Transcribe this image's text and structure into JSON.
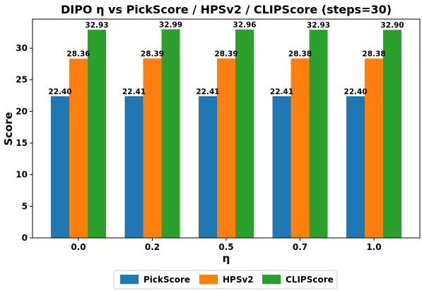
{
  "chart_data": {
    "type": "bar",
    "title": "DIPO η vs PickScore / HPSv2 / CLIPScore (steps=30)",
    "xlabel": "η",
    "ylabel": "Score",
    "categories": [
      "0.0",
      "0.2",
      "0.5",
      "0.7",
      "1.0"
    ],
    "series": [
      {
        "name": "PickScore",
        "color": "#1f77b4",
        "values": [
          22.4,
          22.41,
          22.41,
          22.41,
          22.4
        ],
        "labels": [
          "22.40",
          "22.41",
          "22.41",
          "22.41",
          "22.40"
        ]
      },
      {
        "name": "HPSv2",
        "color": "#ff7f0e",
        "values": [
          28.36,
          28.39,
          28.39,
          28.38,
          28.38
        ],
        "labels": [
          "28.36",
          "28.39",
          "28.39",
          "28.38",
          "28.38"
        ]
      },
      {
        "name": "CLIPScore",
        "color": "#2ca02c",
        "values": [
          32.93,
          32.99,
          32.96,
          32.93,
          32.9
        ],
        "labels": [
          "32.93",
          "32.99",
          "32.96",
          "32.93",
          "32.90"
        ]
      }
    ],
    "ylim": [
      0,
      34.6
    ],
    "yticks": [
      "0",
      "5",
      "10",
      "15",
      "20",
      "25",
      "30"
    ],
    "grid": false,
    "legend": "bottom-center"
  }
}
